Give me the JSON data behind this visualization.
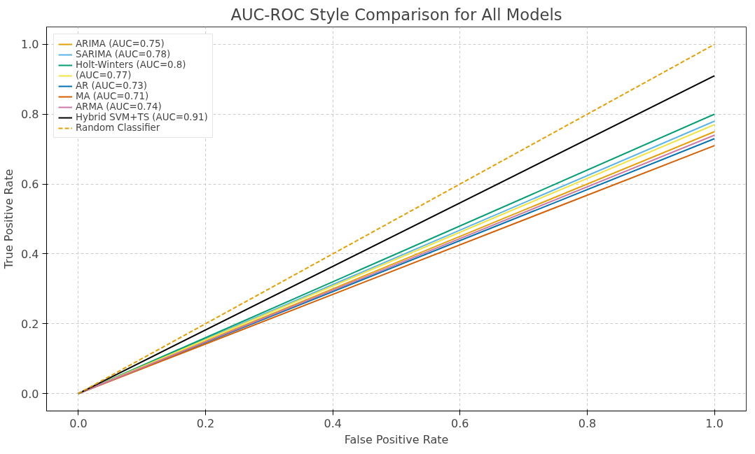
{
  "chart_data": {
    "type": "line",
    "title": "AUC-ROC Style Comparison for All Models",
    "xlabel": "False Positive Rate",
    "ylabel": "True Positive Rate",
    "x": [
      0,
      1
    ],
    "series": [
      {
        "name": "ARIMA (AUC=0.75)",
        "color": "#e69f00",
        "values": [
          0,
          0.75
        ]
      },
      {
        "name": "SARIMA (AUC=0.78)",
        "color": "#56b4e9",
        "values": [
          0,
          0.78
        ]
      },
      {
        "name": "Holt-Winters (AUC=0.8)",
        "color": "#009e73",
        "values": [
          0,
          0.8
        ]
      },
      {
        "name": "(AUC=0.77)",
        "color": "#f0e442",
        "values": [
          0,
          0.77
        ]
      },
      {
        "name": "AR (AUC=0.73)",
        "color": "#0072b2",
        "values": [
          0,
          0.73
        ]
      },
      {
        "name": "MA (AUC=0.71)",
        "color": "#d55e00",
        "values": [
          0,
          0.71
        ]
      },
      {
        "name": "ARMA (AUC=0.74)",
        "color": "#cc79a7",
        "values": [
          0,
          0.74
        ]
      },
      {
        "name": "Hybrid SVM+TS (AUC=0.91)",
        "color": "#000000",
        "values": [
          0,
          0.91
        ]
      },
      {
        "name": "Random Classifier",
        "color": "#e69f00",
        "values": [
          0,
          1
        ],
        "line_style": "dashed"
      }
    ],
    "xlim": [
      -0.05,
      1.05
    ],
    "ylim": [
      -0.05,
      1.05
    ],
    "xticks": [
      {
        "value": 0,
        "label": "0.0"
      },
      0.2,
      0.4,
      0.6,
      0.8,
      {
        "value": 1,
        "label": "1.0"
      }
    ],
    "yticks": [
      {
        "value": 0,
        "label": "0.0"
      },
      0.2,
      0.4,
      0.6,
      0.8,
      {
        "value": 1,
        "label": "1.0"
      }
    ],
    "grid": true,
    "legend": "top left",
    "line_style": "solid"
  }
}
